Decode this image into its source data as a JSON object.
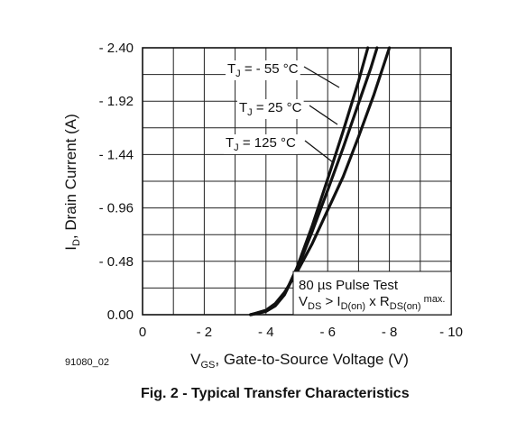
{
  "chart_data": {
    "type": "line",
    "figure_id": "91080_02",
    "caption": "Fig. 2 - Typical Transfer Characteristics",
    "xlabel": {
      "main": "V",
      "sub": "GS",
      "rest": ", Gate-to-Source Voltage (V)"
    },
    "ylabel": {
      "main": "I",
      "sub": "D",
      "rest": ", Drain Current (A)"
    },
    "xlim": [
      0,
      -10
    ],
    "ylim": [
      0,
      2.4
    ],
    "x_ticks": [
      {
        "value": 0,
        "label": "0"
      },
      {
        "value": -2,
        "label": "- 2"
      },
      {
        "value": -4,
        "label": "- 4"
      },
      {
        "value": -6,
        "label": "- 6"
      },
      {
        "value": -8,
        "label": "- 8"
      },
      {
        "value": -10,
        "label": "- 10"
      }
    ],
    "y_ticks": [
      {
        "value": 0,
        "label": "0.00"
      },
      {
        "value": 0.48,
        "label": "- 0.48"
      },
      {
        "value": 0.96,
        "label": "- 0.96"
      },
      {
        "value": 1.44,
        "label": "- 1.44"
      },
      {
        "value": 1.92,
        "label": "- 1.92"
      },
      {
        "value": 2.4,
        "label": "- 2.40"
      }
    ],
    "grid": true,
    "series": [
      {
        "name": "T_J = - 55 °C",
        "label": {
          "pre": "T",
          "sub": "J",
          "post": " = - 55 °C"
        },
        "x": [
          -3.5,
          -4.0,
          -4.3,
          -4.6,
          -5.0,
          -5.5,
          -6.0,
          -6.5,
          -7.0,
          -7.3
        ],
        "y": [
          0.0,
          0.03,
          0.08,
          0.18,
          0.42,
          0.8,
          1.22,
          1.65,
          2.1,
          2.4
        ]
      },
      {
        "name": "T_J = 25 °C",
        "label": {
          "pre": "T",
          "sub": "J",
          "post": " = 25 °C"
        },
        "x": [
          -3.5,
          -4.0,
          -4.3,
          -4.6,
          -5.0,
          -5.5,
          -6.0,
          -6.5,
          -7.0,
          -7.4,
          -7.6
        ],
        "y": [
          0.0,
          0.03,
          0.08,
          0.18,
          0.4,
          0.75,
          1.12,
          1.5,
          1.9,
          2.22,
          2.4
        ]
      },
      {
        "name": "T_J = 125 °C",
        "label": {
          "pre": "T",
          "sub": "J",
          "post": " = 125 °C"
        },
        "x": [
          -3.5,
          -4.0,
          -4.3,
          -4.6,
          -5.0,
          -5.5,
          -6.0,
          -6.5,
          -7.0,
          -7.5,
          -8.0
        ],
        "y": [
          0.0,
          0.04,
          0.1,
          0.2,
          0.38,
          0.64,
          0.94,
          1.24,
          1.6,
          1.98,
          2.4
        ]
      }
    ],
    "annotation": {
      "line1": "80 µs Pulse Test",
      "line2": {
        "a": "V",
        "a_sub": "DS",
        "b": " > I",
        "b_sub": "D(on)",
        "c": " x R",
        "c_sub": "DS(on)",
        "d": " max."
      }
    }
  }
}
